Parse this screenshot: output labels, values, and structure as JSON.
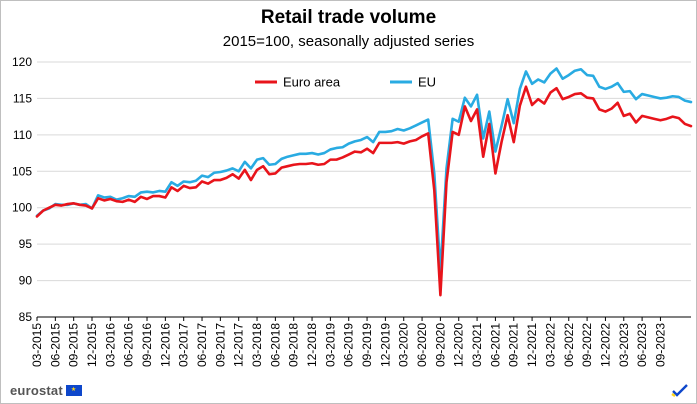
{
  "title": "Retail trade volume",
  "subtitle": "2015=100, seasonally adjusted series",
  "footer": {
    "brand": "eurostat"
  },
  "chart_data": {
    "type": "line",
    "title": "Retail trade volume",
    "subtitle": "2015=100, seasonally adjusted series",
    "xlabel": "",
    "ylabel": "",
    "ylim": [
      85,
      120
    ],
    "yticks": [
      85,
      90,
      95,
      100,
      105,
      110,
      115,
      120
    ],
    "grid": true,
    "legend_position": "top",
    "x_tick_labels": [
      "03-2015",
      "06-2015",
      "09-2015",
      "12-2015",
      "03-2016",
      "06-2016",
      "09-2016",
      "12-2016",
      "03-2017",
      "06-2017",
      "09-2017",
      "12-2017",
      "03-2018",
      "06-2018",
      "09-2018",
      "12-2018",
      "03-2019",
      "06-2019",
      "09-2019",
      "12-2019",
      "03-2020",
      "06-2020",
      "09-2020",
      "12-2020",
      "03-2021",
      "06-2021",
      "09-2021",
      "12-2021",
      "03-2022",
      "06-2022",
      "09-2022",
      "12-2022",
      "03-2023",
      "06-2023",
      "09-2023"
    ],
    "series": [
      {
        "name": "Euro area",
        "color": "#e8141b",
        "values": [
          98.8,
          99.6,
          100.0,
          100.4,
          100.3,
          100.5,
          100.6,
          100.4,
          100.3,
          99.9,
          101.3,
          101.0,
          101.2,
          100.9,
          100.8,
          101.1,
          100.8,
          101.5,
          101.2,
          101.6,
          101.6,
          101.4,
          102.8,
          102.3,
          103.0,
          102.7,
          102.8,
          103.6,
          103.3,
          103.8,
          103.8,
          104.1,
          104.6,
          104.0,
          105.2,
          103.8,
          105.2,
          105.7,
          104.6,
          104.7,
          105.5,
          105.7,
          105.9,
          106.0,
          106.0,
          106.1,
          105.9,
          106.0,
          106.6,
          106.6,
          106.9,
          107.3,
          107.7,
          107.6,
          108.1,
          107.5,
          108.9,
          108.9,
          108.9,
          109.0,
          108.8,
          109.1,
          109.3,
          109.8,
          110.2,
          102.4,
          88.0,
          103.5,
          110.4,
          110.0,
          113.9,
          111.9,
          113.5,
          107.0,
          111.5,
          104.7,
          109.0,
          112.7,
          109.0,
          114.0,
          116.6,
          114.1,
          114.9,
          114.3,
          115.8,
          116.4,
          114.9,
          115.2,
          115.6,
          115.7,
          115.1,
          115.0,
          113.5,
          113.2,
          113.6,
          114.4,
          112.6,
          112.9,
          111.7,
          112.6,
          112.4,
          112.2,
          112.0,
          112.2,
          112.5,
          112.3,
          111.5,
          111.2
        ]
      },
      {
        "name": "EU",
        "color": "#29abe2",
        "values": [
          98.9,
          99.6,
          99.9,
          100.5,
          100.4,
          100.4,
          100.6,
          100.4,
          100.5,
          99.9,
          101.7,
          101.4,
          101.5,
          101.1,
          101.3,
          101.6,
          101.5,
          102.1,
          102.2,
          102.1,
          102.3,
          102.2,
          103.5,
          103.0,
          103.6,
          103.5,
          103.7,
          104.4,
          104.2,
          104.8,
          104.9,
          105.1,
          105.4,
          105.0,
          106.3,
          105.4,
          106.6,
          106.8,
          105.9,
          106.0,
          106.7,
          107.0,
          107.2,
          107.4,
          107.4,
          107.5,
          107.3,
          107.5,
          108.0,
          108.2,
          108.3,
          108.8,
          109.1,
          109.3,
          109.7,
          109.0,
          110.4,
          110.4,
          110.5,
          110.8,
          110.6,
          110.9,
          111.3,
          111.7,
          112.1,
          104.7,
          91.3,
          105.4,
          112.2,
          111.8,
          115.1,
          113.9,
          115.5,
          109.5,
          113.2,
          107.7,
          111.2,
          114.9,
          111.6,
          116.3,
          118.7,
          117.0,
          117.6,
          117.2,
          118.4,
          119.1,
          117.7,
          118.2,
          118.8,
          119.0,
          118.2,
          118.1,
          116.6,
          116.3,
          116.6,
          117.1,
          115.9,
          116.0,
          114.9,
          115.6,
          115.4,
          115.2,
          115.0,
          115.1,
          115.3,
          115.2,
          114.7,
          114.5
        ]
      }
    ]
  }
}
